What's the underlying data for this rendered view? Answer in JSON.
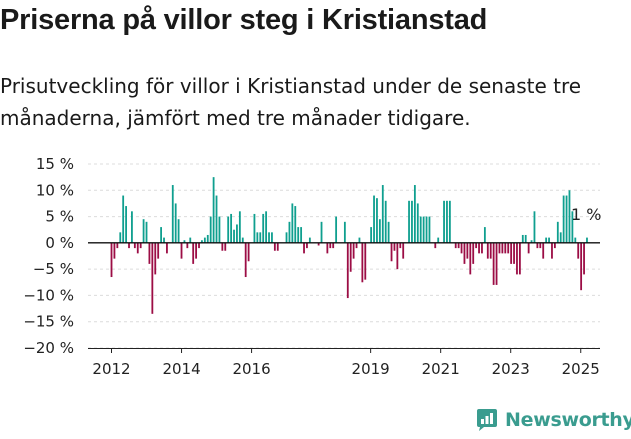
{
  "title": "Priserna på villor steg i Kristianstad",
  "subtitle": "Prisutveckling för villor i Kristianstad under de senaste tre månaderna, jämfört med tre månader tidigare.",
  "brand": "Newsworthy",
  "colors": {
    "positive": "#0f9f8f",
    "negative": "#9c0d45",
    "brand": "#3a9c8f"
  },
  "chart_data": {
    "type": "bar",
    "ylim": [
      -20,
      15
    ],
    "ytick_values": [
      15,
      10,
      5,
      0,
      -5,
      -10,
      -15,
      -20
    ],
    "ytick_labels": [
      "15 %",
      "10 %",
      "5 %",
      "0 %",
      "−5 %",
      "−10 %",
      "−15 %",
      "−20 %"
    ],
    "xtick_labels": [
      "2012",
      "2014",
      "2016",
      "2019",
      "2021",
      "2023",
      "2025"
    ],
    "xtick_positions": [
      2012.0,
      2014.0,
      2016.0,
      2019.4,
      2021.4,
      2023.4,
      2025.4
    ],
    "x_start": 2012.0,
    "x_step": 0.0833,
    "values": [
      -6.5,
      -3,
      -1,
      2,
      9,
      7,
      -1,
      6,
      -1,
      -2,
      -1,
      4.5,
      4,
      -4,
      -13.5,
      -6,
      -3,
      3,
      1,
      -2,
      0,
      11,
      7.5,
      4.5,
      -3,
      0.5,
      -1,
      1,
      -4,
      -3,
      -1,
      0.5,
      1,
      1.5,
      5,
      12.5,
      9,
      5,
      -1.5,
      -1.5,
      5,
      5.5,
      2.5,
      3.5,
      6,
      1,
      -6.5,
      -3.5,
      0,
      5.5,
      2,
      2,
      5.5,
      6,
      2,
      2,
      -1.5,
      -1.5,
      0,
      0,
      2,
      4,
      7.5,
      7,
      3,
      3,
      -2,
      -1,
      1,
      0,
      0,
      -0.5,
      4,
      0,
      -2,
      -1,
      -1,
      5,
      0,
      0,
      4,
      -10.5,
      -5.5,
      -3,
      -1,
      1,
      -7.5,
      -7,
      0,
      3,
      9,
      8.5,
      4.5,
      11,
      8,
      4,
      -3.5,
      -1.5,
      -5,
      -1,
      -3,
      0,
      8,
      8,
      11,
      7.5,
      5,
      5,
      5,
      5,
      0,
      -1,
      1,
      0,
      8,
      8,
      8,
      0,
      -1,
      -1,
      -2,
      -4,
      -3,
      -6,
      -4,
      -1,
      -2,
      -2,
      3,
      -3,
      -3,
      -8,
      -8,
      -2,
      -2,
      -2,
      -2,
      -4,
      -4,
      -6,
      -6,
      1.5,
      1.5,
      -2,
      0.5,
      6,
      -1,
      -1,
      -3,
      1,
      1,
      -3,
      -1,
      4,
      2,
      9,
      9,
      10,
      6,
      1,
      -3,
      -9,
      -6,
      1
    ],
    "annotation": "1 %"
  }
}
